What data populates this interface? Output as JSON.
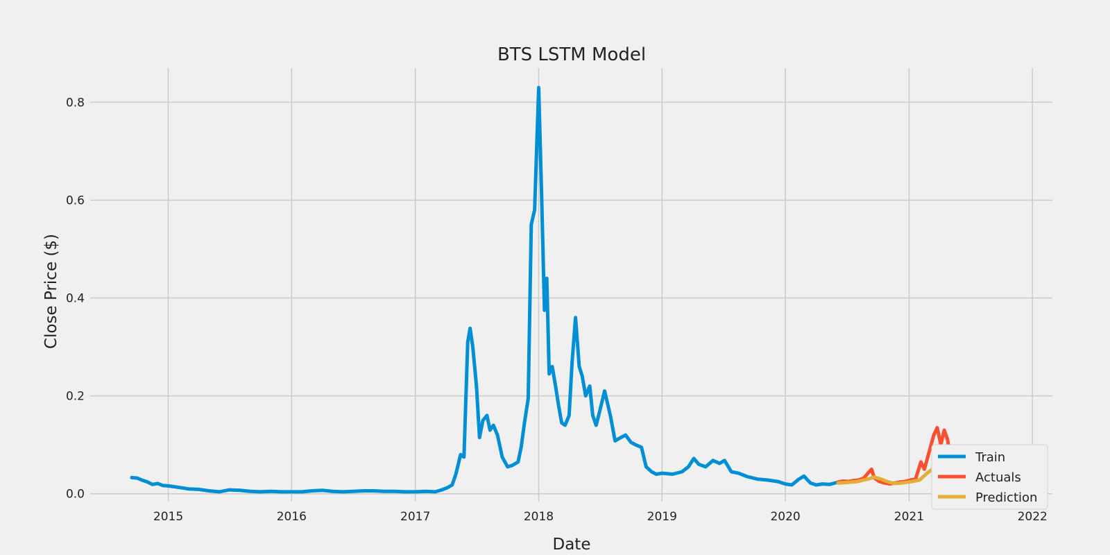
{
  "chart_data": {
    "type": "line",
    "title": "BTS LSTM Model",
    "xlabel": "Date",
    "ylabel": "Close Price ($)",
    "x_ticks": [
      "2015",
      "2016",
      "2017",
      "2018",
      "2019",
      "2020",
      "2021",
      "2022"
    ],
    "y_ticks": [
      "0.0",
      "0.2",
      "0.4",
      "0.6",
      "0.8"
    ],
    "xlim": [
      "2014-05-15",
      "2022-03-01"
    ],
    "ylim": [
      -0.016,
      0.87
    ],
    "grid": true,
    "legend_position": "lower-right",
    "series": [
      {
        "name": "Train",
        "color": "#008fd5",
        "points": [
          [
            "2014-09-15",
            0.033
          ],
          [
            "2014-10-01",
            0.032
          ],
          [
            "2014-10-15",
            0.028
          ],
          [
            "2014-11-01",
            0.024
          ],
          [
            "2014-11-15",
            0.019
          ],
          [
            "2014-12-01",
            0.021
          ],
          [
            "2014-12-15",
            0.017
          ],
          [
            "2015-01-01",
            0.016
          ],
          [
            "2015-02-01",
            0.013
          ],
          [
            "2015-03-01",
            0.01
          ],
          [
            "2015-04-01",
            0.009
          ],
          [
            "2015-05-01",
            0.006
          ],
          [
            "2015-06-01",
            0.004
          ],
          [
            "2015-07-01",
            0.008
          ],
          [
            "2015-08-01",
            0.007
          ],
          [
            "2015-09-01",
            0.005
          ],
          [
            "2015-10-01",
            0.004
          ],
          [
            "2015-11-01",
            0.005
          ],
          [
            "2015-12-01",
            0.004
          ],
          [
            "2016-01-01",
            0.004
          ],
          [
            "2016-02-01",
            0.004
          ],
          [
            "2016-03-01",
            0.006
          ],
          [
            "2016-04-01",
            0.007
          ],
          [
            "2016-05-01",
            0.005
          ],
          [
            "2016-06-01",
            0.004
          ],
          [
            "2016-07-01",
            0.005
          ],
          [
            "2016-08-01",
            0.006
          ],
          [
            "2016-09-01",
            0.006
          ],
          [
            "2016-10-01",
            0.005
          ],
          [
            "2016-11-01",
            0.005
          ],
          [
            "2016-12-01",
            0.004
          ],
          [
            "2017-01-01",
            0.004
          ],
          [
            "2017-02-01",
            0.005
          ],
          [
            "2017-03-01",
            0.004
          ],
          [
            "2017-03-20",
            0.008
          ],
          [
            "2017-04-05",
            0.012
          ],
          [
            "2017-04-20",
            0.018
          ],
          [
            "2017-05-01",
            0.04
          ],
          [
            "2017-05-15",
            0.08
          ],
          [
            "2017-05-25",
            0.075
          ],
          [
            "2017-06-05",
            0.31
          ],
          [
            "2017-06-12",
            0.338
          ],
          [
            "2017-06-20",
            0.3
          ],
          [
            "2017-07-01",
            0.22
          ],
          [
            "2017-07-10",
            0.115
          ],
          [
            "2017-07-20",
            0.15
          ],
          [
            "2017-08-01",
            0.16
          ],
          [
            "2017-08-10",
            0.13
          ],
          [
            "2017-08-20",
            0.14
          ],
          [
            "2017-09-01",
            0.12
          ],
          [
            "2017-09-15",
            0.075
          ],
          [
            "2017-10-01",
            0.055
          ],
          [
            "2017-10-15",
            0.058
          ],
          [
            "2017-11-01",
            0.065
          ],
          [
            "2017-11-10",
            0.095
          ],
          [
            "2017-11-20",
            0.145
          ],
          [
            "2017-12-01",
            0.195
          ],
          [
            "2017-12-10",
            0.55
          ],
          [
            "2017-12-20",
            0.58
          ],
          [
            "2018-01-01",
            0.83
          ],
          [
            "2018-01-10",
            0.6
          ],
          [
            "2018-01-18",
            0.375
          ],
          [
            "2018-01-25",
            0.44
          ],
          [
            "2018-02-01",
            0.245
          ],
          [
            "2018-02-10",
            0.26
          ],
          [
            "2018-02-20",
            0.22
          ],
          [
            "2018-03-01",
            0.18
          ],
          [
            "2018-03-10",
            0.145
          ],
          [
            "2018-03-20",
            0.14
          ],
          [
            "2018-04-01",
            0.16
          ],
          [
            "2018-04-10",
            0.27
          ],
          [
            "2018-04-20",
            0.36
          ],
          [
            "2018-05-01",
            0.26
          ],
          [
            "2018-05-10",
            0.24
          ],
          [
            "2018-05-20",
            0.2
          ],
          [
            "2018-06-01",
            0.22
          ],
          [
            "2018-06-10",
            0.16
          ],
          [
            "2018-06-20",
            0.14
          ],
          [
            "2018-07-01",
            0.17
          ],
          [
            "2018-07-15",
            0.21
          ],
          [
            "2018-08-01",
            0.16
          ],
          [
            "2018-08-15",
            0.108
          ],
          [
            "2018-09-01",
            0.115
          ],
          [
            "2018-09-15",
            0.12
          ],
          [
            "2018-10-01",
            0.105
          ],
          [
            "2018-10-15",
            0.1
          ],
          [
            "2018-11-01",
            0.095
          ],
          [
            "2018-11-15",
            0.055
          ],
          [
            "2018-12-01",
            0.045
          ],
          [
            "2018-12-15",
            0.04
          ],
          [
            "2019-01-01",
            0.042
          ],
          [
            "2019-02-01",
            0.04
          ],
          [
            "2019-03-01",
            0.045
          ],
          [
            "2019-03-20",
            0.055
          ],
          [
            "2019-04-05",
            0.072
          ],
          [
            "2019-04-20",
            0.06
          ],
          [
            "2019-05-10",
            0.055
          ],
          [
            "2019-06-01",
            0.068
          ],
          [
            "2019-06-20",
            0.062
          ],
          [
            "2019-07-05",
            0.068
          ],
          [
            "2019-07-25",
            0.045
          ],
          [
            "2019-08-15",
            0.042
          ],
          [
            "2019-09-10",
            0.035
          ],
          [
            "2019-10-10",
            0.03
          ],
          [
            "2019-11-10",
            0.028
          ],
          [
            "2019-12-10",
            0.025
          ],
          [
            "2020-01-01",
            0.02
          ],
          [
            "2020-01-20",
            0.018
          ],
          [
            "2020-02-10",
            0.03
          ],
          [
            "2020-02-25",
            0.036
          ],
          [
            "2020-03-15",
            0.022
          ],
          [
            "2020-04-01",
            0.018
          ],
          [
            "2020-04-20",
            0.02
          ],
          [
            "2020-05-10",
            0.019
          ],
          [
            "2020-06-01",
            0.023
          ]
        ]
      },
      {
        "name": "Actuals",
        "color": "#fc4f30",
        "points": [
          [
            "2020-06-05",
            0.024
          ],
          [
            "2020-06-20",
            0.026
          ],
          [
            "2020-07-05",
            0.025
          ],
          [
            "2020-07-20",
            0.027
          ],
          [
            "2020-08-05",
            0.028
          ],
          [
            "2020-08-20",
            0.032
          ],
          [
            "2020-09-05",
            0.045
          ],
          [
            "2020-09-12",
            0.05
          ],
          [
            "2020-09-20",
            0.032
          ],
          [
            "2020-10-05",
            0.025
          ],
          [
            "2020-10-20",
            0.022
          ],
          [
            "2020-11-05",
            0.02
          ],
          [
            "2020-11-20",
            0.022
          ],
          [
            "2020-12-05",
            0.024
          ],
          [
            "2020-12-20",
            0.025
          ],
          [
            "2021-01-05",
            0.028
          ],
          [
            "2021-01-20",
            0.03
          ],
          [
            "2021-02-05",
            0.065
          ],
          [
            "2021-02-15",
            0.05
          ],
          [
            "2021-03-01",
            0.085
          ],
          [
            "2021-03-15",
            0.12
          ],
          [
            "2021-03-25",
            0.135
          ],
          [
            "2021-04-05",
            0.1
          ],
          [
            "2021-04-15",
            0.13
          ],
          [
            "2021-04-25",
            0.11
          ],
          [
            "2021-05-05",
            0.06
          ],
          [
            "2021-05-15",
            0.055
          ],
          [
            "2021-06-01",
            0.06
          ],
          [
            "2021-06-20",
            0.055
          ],
          [
            "2021-07-10",
            0.052
          ],
          [
            "2021-08-01",
            0.058
          ],
          [
            "2021-08-20",
            0.05
          ],
          [
            "2021-09-10",
            0.052
          ],
          [
            "2021-10-01",
            0.055
          ],
          [
            "2021-10-25",
            0.052
          ]
        ]
      },
      {
        "name": "Prediction",
        "color": "#e5ae38",
        "points": [
          [
            "2020-06-05",
            0.022
          ],
          [
            "2020-07-01",
            0.023
          ],
          [
            "2020-08-01",
            0.025
          ],
          [
            "2020-09-01",
            0.03
          ],
          [
            "2020-09-20",
            0.034
          ],
          [
            "2020-10-10",
            0.03
          ],
          [
            "2020-11-01",
            0.024
          ],
          [
            "2020-11-20",
            0.021
          ],
          [
            "2020-12-10",
            0.022
          ],
          [
            "2021-01-01",
            0.024
          ],
          [
            "2021-02-01",
            0.028
          ],
          [
            "2021-02-20",
            0.04
          ],
          [
            "2021-03-10",
            0.05
          ],
          [
            "2021-03-25",
            0.06
          ],
          [
            "2021-04-10",
            0.07
          ],
          [
            "2021-04-25",
            0.075
          ],
          [
            "2021-05-10",
            0.07
          ],
          [
            "2021-05-25",
            0.065
          ],
          [
            "2021-06-15",
            0.06
          ],
          [
            "2021-07-10",
            0.055
          ],
          [
            "2021-08-01",
            0.054
          ],
          [
            "2021-09-01",
            0.053
          ],
          [
            "2021-10-01",
            0.052
          ],
          [
            "2021-10-25",
            0.052
          ]
        ]
      }
    ]
  }
}
